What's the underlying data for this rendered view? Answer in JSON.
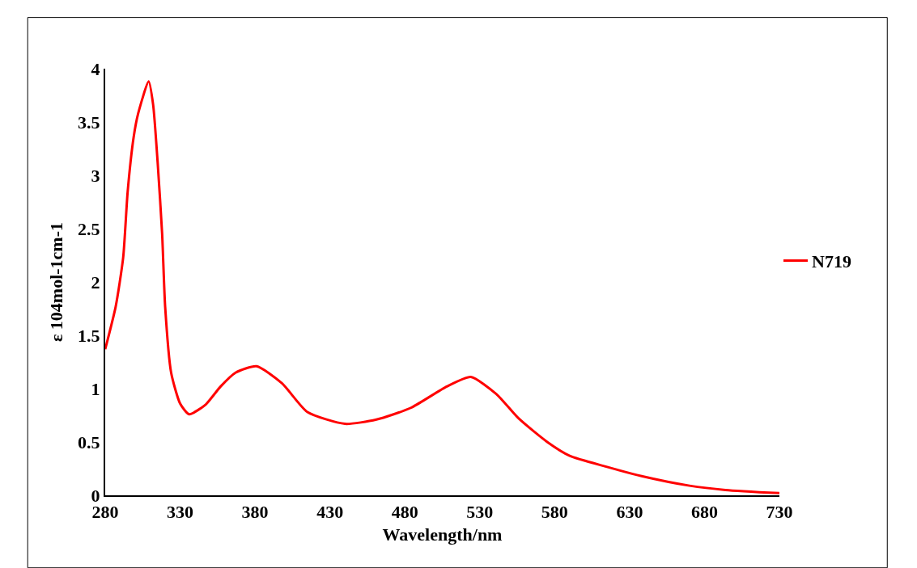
{
  "chart_data": {
    "type": "line",
    "xlabel": "Wavelength/nm",
    "ylabel": "ε 104mol-1cm-1",
    "xlim": [
      280,
      730
    ],
    "xticks": [
      280,
      330,
      380,
      430,
      480,
      530,
      580,
      630,
      680,
      730
    ],
    "ylim": [
      0,
      4
    ],
    "yticks": [
      0,
      0.5,
      1,
      1.5,
      2,
      2.5,
      3,
      3.5,
      4
    ],
    "legend": "right",
    "marker": "none",
    "line_style": "solid",
    "series": [
      {
        "name": "N719",
        "color": "#ff0000",
        "x": [
          280,
          287,
          292,
          295,
          299,
          302,
          309,
          312,
          315,
          318,
          320,
          324,
          330,
          336,
          347,
          357,
          367,
          381,
          398,
          415,
          440,
          461,
          484,
          508,
          524,
          541,
          556,
          575,
          590,
          614,
          638,
          670,
          694,
          730
        ],
        "values": [
          1.37,
          1.77,
          2.23,
          2.85,
          3.36,
          3.58,
          3.88,
          3.66,
          3.12,
          2.45,
          1.77,
          1.15,
          0.86,
          0.76,
          0.85,
          1.02,
          1.15,
          1.21,
          1.05,
          0.78,
          0.67,
          0.71,
          0.82,
          1.02,
          1.11,
          0.95,
          0.72,
          0.5,
          0.37,
          0.27,
          0.18,
          0.09,
          0.05,
          0.02
        ]
      }
    ]
  }
}
